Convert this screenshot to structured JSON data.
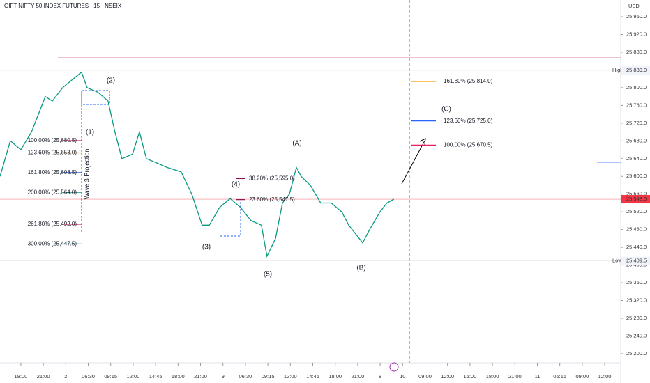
{
  "chart_data": {
    "type": "line",
    "title": "GIFT NIFTY 50 INDEX FUTURES · 15 · NSEIX",
    "currency": "USD",
    "color": "#089981",
    "x": [
      -0.93,
      -0.47,
      0,
      0.47,
      0.78,
      1.09,
      1.4,
      1.86,
      2.33,
      2.7,
      2.95,
      3.42,
      3.88,
      4.19,
      4.5,
      4.97,
      5.28,
      5.59,
      6.06,
      6.52,
      7.14,
      7.61,
      8.07,
      8.39,
      8.85,
      9.32,
      9.78,
      10.25,
      10.71,
      10.96,
      11.34,
      11.65,
      11.96,
      12.27,
      12.48,
      12.89,
      13.35,
      13.82,
      14.29,
      14.6,
      15.22,
      15.53,
      15.99,
      16.3,
      16.61
    ],
    "values": [
      25600,
      25680,
      25660,
      25700,
      25740,
      25780,
      25770,
      25800,
      25820,
      25835,
      25800,
      25790,
      25770,
      25700,
      25640,
      25650,
      25700,
      25640,
      25630,
      25620,
      25610,
      25560,
      25490,
      25490,
      25530,
      25550,
      25530,
      25500,
      25490,
      25420,
      25460,
      25540,
      25560,
      25620,
      25600,
      25580,
      25540,
      25540,
      25520,
      25490,
      25450,
      25480,
      25520,
      25540,
      25548.5
    ],
    "xlim": [
      -0.93,
      26.65
    ],
    "ylim": [
      25181.1,
      25997.7
    ],
    "xticks": [
      {
        "value": 0,
        "label": "18:00"
      },
      {
        "value": 1,
        "label": "21:00"
      },
      2,
      {
        "value": 3,
        "label": "06:30"
      },
      {
        "value": 4,
        "label": "09:15"
      },
      {
        "value": 5,
        "label": "12:00"
      },
      {
        "value": 6,
        "label": "14:45"
      },
      {
        "value": 7,
        "label": "18:00"
      },
      {
        "value": 8,
        "label": "21:00"
      },
      9,
      {
        "value": 10,
        "label": "06:30"
      },
      {
        "value": 11,
        "label": "09:15"
      },
      {
        "value": 12,
        "label": "12:00"
      },
      {
        "value": 13,
        "label": "14:45"
      },
      {
        "value": 14,
        "label": "18:00"
      },
      {
        "value": 15,
        "label": "21:00"
      },
      {
        "value": 16,
        "label": "8"
      },
      {
        "value": 17,
        "label": "10"
      },
      {
        "value": 18,
        "label": "09:00"
      },
      {
        "value": 19,
        "label": "12:00"
      },
      {
        "value": 20,
        "label": "15:00"
      },
      {
        "value": 21,
        "label": "18:00"
      },
      {
        "value": 22,
        "label": "21:00"
      },
      {
        "value": 23,
        "label": "11"
      },
      {
        "value": 24,
        "label": "06:15"
      },
      {
        "value": 25,
        "label": "09:00"
      },
      {
        "value": 26,
        "label": "12:00"
      }
    ],
    "yticks": [
      {
        "value": 25960,
        "label": "25,960.0"
      },
      {
        "value": 25920,
        "label": "25,920.0"
      },
      {
        "value": 25880,
        "label": "25,880.0"
      },
      {
        "value": 25840,
        "label": "25,840.0"
      },
      {
        "value": 25800,
        "label": "25,800.0"
      },
      {
        "value": 25760,
        "label": "25,760.0"
      },
      {
        "value": 25720,
        "label": "25,720.0"
      },
      {
        "value": 25680,
        "label": "25,680.0"
      },
      {
        "value": 25640,
        "label": "25,640.0"
      },
      {
        "value": 25600,
        "label": "25,600.0"
      },
      {
        "value": 25560,
        "label": "25,560.0"
      },
      {
        "value": 25520,
        "label": "25,520.0"
      },
      {
        "value": 25480,
        "label": "25,480.0"
      },
      {
        "value": 25440,
        "label": "25,440.0"
      },
      {
        "value": 25400,
        "label": "25,400.0"
      },
      {
        "value": 25360,
        "label": "25,360.0"
      },
      {
        "value": 25320,
        "label": "25,320.0"
      },
      {
        "value": 25280,
        "label": "25,280.0"
      },
      {
        "value": 25240,
        "label": "25,240.0"
      },
      {
        "value": 25200,
        "label": "25,200.0"
      }
    ],
    "price_marks": [
      {
        "label": "High",
        "value": 25839,
        "value_label": "25,839.0",
        "color": "#d1d4dc"
      },
      {
        "label": "Low",
        "value": 25409.5,
        "value_label": "25,409.5",
        "color": "#d1d4dc"
      },
      {
        "value": 25548.5,
        "value_label": "25,548.5",
        "color": "#f23645"
      }
    ],
    "levels": [
      {
        "value": 25867,
        "color": "#b2102f"
      },
      {
        "value": 25632,
        "color": "#2962ff"
      }
    ],
    "fib_levels": [
      {
        "text": "100.00% (25,680.5)",
        "value": 25680.5,
        "color": "#e91e63"
      },
      {
        "text": "123.60% (25,653.0)",
        "value": 25653,
        "color": "#ff9800"
      },
      {
        "text": "161.80% (25,608.5)",
        "value": 25608.5,
        "color": "#2962ff"
      },
      {
        "text": "200.00% (25,564.0)",
        "value": 25564,
        "color": "#089981"
      },
      {
        "text": "261.80% (25,492.0)",
        "value": 25492,
        "color": "#e91e63"
      },
      {
        "text": "300.00% (25,447.5)",
        "value": 25447.5,
        "color": "#00bcd4"
      },
      {
        "text": "38.20% (25,595.0)",
        "value": 25595,
        "color": "#880e4f"
      },
      {
        "text": "23.60% (25,547.5)",
        "value": 25547.5,
        "color": "#880e4f"
      },
      {
        "text": "161.80% (25,814.0)",
        "value": 25814,
        "color": "#ff9800"
      },
      {
        "text": "123.60% (25,725.0)",
        "value": 25725,
        "color": "#2962ff"
      },
      {
        "text": "100.00% (25,670.5)",
        "value": 25670.5,
        "color": "#e91e63"
      }
    ],
    "wave_labels": [
      "(1)",
      "(2)",
      "(3)",
      "(4)",
      "(5)",
      "(A)",
      "(B)",
      "(C)"
    ],
    "projection_label": "Wave 3 Projection"
  }
}
